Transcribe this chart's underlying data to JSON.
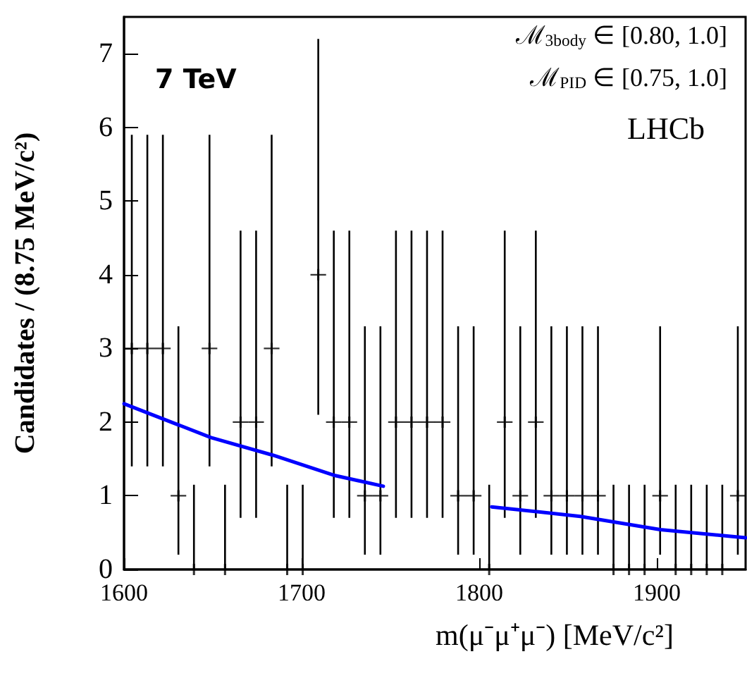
{
  "chart_data": {
    "type": "scatter",
    "xlabel": "m(μ⁻μ⁺μ⁻) [MeV/c²]",
    "ylabel": "Candidates / (8.75 MeV/c²)",
    "annotations": [
      "7 TeV",
      "ℳ$_{3body}$ ∈ [0.80, 1.0]",
      "ℳ$_{PID}$ ∈ [0.75, 1.0]",
      "LHCb"
    ],
    "xlim": [
      1600,
      1950
    ],
    "xticks": [
      1600,
      1700,
      1800,
      1900
    ],
    "ylim": [
      0,
      7.5
    ],
    "yticks": [
      0,
      1,
      2,
      3,
      4,
      5,
      6,
      7
    ],
    "grid": false,
    "series": [
      {
        "color": "#000000",
        "marker": "cross",
        "x": [
          1604.375,
          1613.125,
          1621.875,
          1630.625,
          1639.375,
          1648.125,
          1656.875,
          1665.625,
          1674.375,
          1683.125,
          1691.875,
          1700.625,
          1709.375,
          1718.125,
          1726.875,
          1735.625,
          1744.375,
          1753.125,
          1761.875,
          1770.625,
          1779.375,
          1788.125,
          1796.875,
          1805.625,
          1814.375,
          1823.125,
          1831.875,
          1840.625,
          1849.375,
          1858.125,
          1866.875,
          1875.625,
          1884.375,
          1893.125,
          1901.875,
          1910.625,
          1919.375,
          1928.125,
          1936.875,
          1945.625
        ],
        "values": [
          3,
          3,
          3,
          1,
          0,
          3,
          0,
          2,
          2,
          3,
          0,
          0,
          4,
          2,
          2,
          1,
          1,
          2,
          2,
          2,
          2,
          1,
          1,
          0,
          2,
          1,
          2,
          1,
          1,
          1,
          1,
          0,
          0,
          0,
          1,
          0,
          0,
          0,
          0,
          1
        ],
        "errors": [
          [
            1.4,
            5.9
          ],
          [
            1.4,
            5.9
          ],
          [
            1.4,
            5.9
          ],
          [
            0.2,
            3.3
          ],
          [
            0,
            1.15
          ],
          [
            1.4,
            5.9
          ],
          [
            0,
            1.15
          ],
          [
            0.7,
            4.6
          ],
          [
            0.7,
            4.6
          ],
          [
            1.4,
            5.9
          ],
          [
            0,
            1.15
          ],
          [
            0,
            1.15
          ],
          [
            2.1,
            7.2
          ],
          [
            0.7,
            4.6
          ],
          [
            0.7,
            4.6
          ],
          [
            0.2,
            3.3
          ],
          [
            0.2,
            3.3
          ],
          [
            0.7,
            4.6
          ],
          [
            0.7,
            4.6
          ],
          [
            0.7,
            4.6
          ],
          [
            0.7,
            4.6
          ],
          [
            0.2,
            3.3
          ],
          [
            0.2,
            3.3
          ],
          [
            0,
            1.15
          ],
          [
            0.7,
            4.6
          ],
          [
            0.2,
            3.3
          ],
          [
            0.7,
            4.6
          ],
          [
            0.2,
            3.3
          ],
          [
            0.2,
            3.3
          ],
          [
            0.2,
            3.3
          ],
          [
            0.2,
            3.3
          ],
          [
            0,
            1.15
          ],
          [
            0,
            1.15
          ],
          [
            0,
            1.15
          ],
          [
            0.2,
            3.3
          ],
          [
            0,
            1.15
          ],
          [
            0,
            1.15
          ],
          [
            0,
            1.15
          ],
          [
            0,
            1.15
          ],
          [
            0.2,
            3.3
          ]
        ],
        "xerrors": [
          4.375,
          4.375,
          4.375,
          4.375,
          4.375,
          4.375,
          4.375,
          4.375,
          4.375,
          4.375,
          4.375,
          4.375,
          4.375,
          4.375,
          4.375,
          4.375,
          4.375,
          4.375,
          4.375,
          4.375,
          4.375,
          4.375,
          4.375,
          4.375,
          4.375,
          4.375,
          4.375,
          4.375,
          4.375,
          4.375,
          4.375,
          4.375,
          4.375,
          4.375,
          4.375,
          4.375,
          4.375,
          4.375,
          4.375,
          4.375
        ]
      },
      {
        "type": "line",
        "color": "#0000ff",
        "marker": "none",
        "line_style": "solid",
        "x": [
          1600,
          1649,
          1684,
          1718,
          1746,
          1776,
          1807,
          1857,
          1902,
          1950
        ],
        "values": [
          2.25,
          1.79,
          1.55,
          1.28,
          1.13,
          null,
          0.85,
          0.72,
          0.54,
          0.43
        ]
      }
    ]
  }
}
